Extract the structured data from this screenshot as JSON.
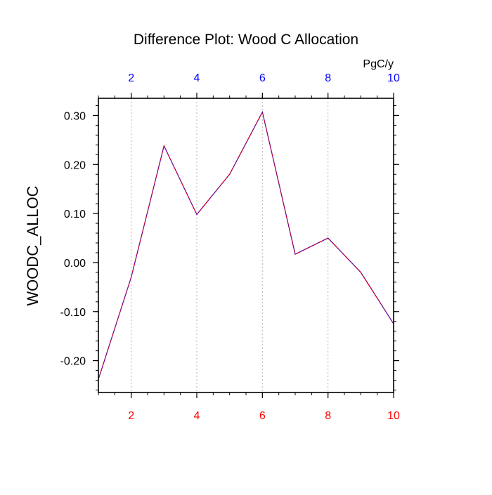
{
  "chart_data": {
    "type": "line",
    "title": "Difference Plot: Wood C Allocation",
    "ylabel": "WOODC_ALLOC",
    "top_axis_unit": "PgC/y",
    "x": [
      1,
      2,
      3,
      4,
      5,
      6,
      7,
      8,
      9,
      10
    ],
    "series": [
      {
        "values": [
          -0.238,
          -0.03,
          0.238,
          0.098,
          0.18,
          0.307,
          0.017,
          0.05,
          -0.02,
          -0.125
        ],
        "color": "#5000a0",
        "dash_color": "#ff0000",
        "style": "dashed"
      }
    ],
    "xlim": [
      1,
      10
    ],
    "ylim": [
      -0.265,
      0.335
    ],
    "x_ticks": [
      2,
      4,
      6,
      8,
      10
    ],
    "x_tick_labels": [
      "2",
      "4",
      "6",
      "8",
      "10"
    ],
    "y_ticks": [
      -0.2,
      -0.1,
      0.0,
      0.1,
      0.2,
      0.3
    ],
    "y_tick_labels": [
      "-0.20",
      "-0.10",
      "0.00",
      "0.10",
      "0.20",
      "0.30"
    ],
    "bottom_tick_color": "#ff0000",
    "top_tick_color": "#0000ff",
    "grid": "vertical-dotted",
    "legend": "none"
  }
}
